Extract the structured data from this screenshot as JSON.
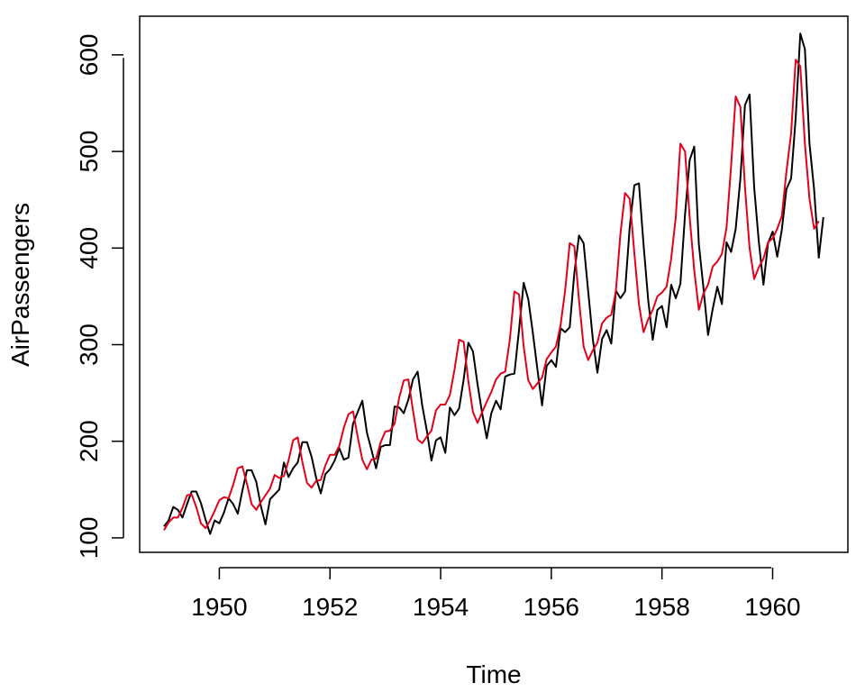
{
  "chart_data": {
    "type": "line",
    "title": "",
    "xlabel": "Time",
    "ylabel": "AirPassengers",
    "xlim": [
      1948.56,
      1961.36
    ],
    "ylim": [
      85,
      640
    ],
    "x_ticks": [
      1950,
      1952,
      1954,
      1956,
      1958,
      1960
    ],
    "x_tick_labels": [
      "1950",
      "1952",
      "1954",
      "1956",
      "1958",
      "1960"
    ],
    "y_ticks": [
      100,
      200,
      300,
      400,
      500,
      600
    ],
    "y_tick_labels": [
      "100",
      "200",
      "300",
      "400",
      "500",
      "600"
    ],
    "x_start": 1949.0,
    "x_step": 0.08333333,
    "grid": false,
    "legend": "none",
    "series": [
      {
        "color": "#000000",
        "values": [
          112,
          118,
          132,
          129,
          121,
          135,
          148,
          148,
          136,
          119,
          104,
          118,
          115,
          126,
          141,
          135,
          125,
          149,
          170,
          170,
          158,
          133,
          114,
          140,
          145,
          150,
          178,
          163,
          172,
          178,
          199,
          199,
          184,
          162,
          146,
          166,
          171,
          180,
          193,
          181,
          183,
          218,
          230,
          242,
          209,
          191,
          172,
          194,
          196,
          196,
          236,
          235,
          229,
          243,
          264,
          272,
          237,
          211,
          180,
          201,
          204,
          188,
          235,
          227,
          234,
          264,
          302,
          293,
          259,
          229,
          203,
          229,
          242,
          233,
          267,
          269,
          270,
          315,
          364,
          347,
          312,
          274,
          237,
          278,
          284,
          277,
          317,
          313,
          318,
          374,
          413,
          405,
          355,
          306,
          271,
          306,
          315,
          301,
          356,
          348,
          355,
          422,
          465,
          467,
          404,
          347,
          305,
          336,
          340,
          318,
          362,
          348,
          363,
          435,
          491,
          505,
          404,
          359,
          310,
          337,
          360,
          342,
          406,
          396,
          420,
          472,
          548,
          559,
          463,
          407,
          362,
          405,
          417,
          391,
          419,
          461,
          472,
          535,
          622,
          606,
          508,
          461,
          390,
          432
        ]
      },
      {
        "color": "#e3001b",
        "values": [
          108,
          116,
          121,
          121,
          131,
          144,
          145,
          132,
          115,
          110,
          118,
          128,
          139,
          142,
          141,
          155,
          172,
          174,
          156,
          135,
          129,
          137,
          144,
          151,
          165,
          162,
          164,
          180,
          201,
          204,
          179,
          157,
          152,
          159,
          160,
          175,
          186,
          186,
          195,
          214,
          228,
          231,
          205,
          181,
          171,
          181,
          182,
          199,
          210,
          211,
          218,
          245,
          263,
          264,
          232,
          202,
          198,
          205,
          211,
          232,
          238,
          238,
          248,
          274,
          305,
          303,
          262,
          230,
          219,
          230,
          241,
          251,
          264,
          270,
          272,
          305,
          355,
          352,
          298,
          263,
          254,
          260,
          266,
          285,
          292,
          298,
          320,
          356,
          405,
          402,
          346,
          298,
          284,
          294,
          302,
          322,
          328,
          331,
          355,
          415,
          457,
          451,
          395,
          342,
          313,
          326,
          336,
          350,
          354,
          360,
          389,
          432,
          508,
          500,
          432,
          377,
          336,
          353,
          362,
          381,
          386,
          394,
          421,
          485,
          557,
          546,
          463,
          400,
          368,
          380,
          389,
          406,
          410,
          420,
          433,
          479,
          519,
          595,
          588,
          508,
          451,
          420,
          428
        ]
      }
    ]
  }
}
